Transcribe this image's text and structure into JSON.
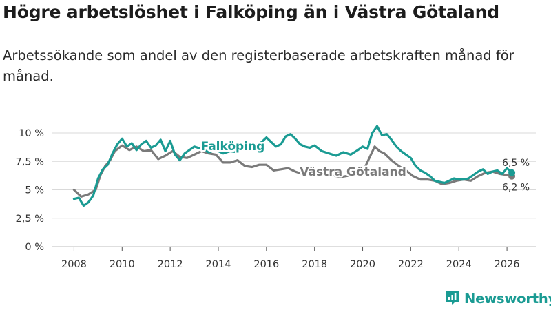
{
  "title": "Högre arbetslöshet i Falköping än i Västra Götaland",
  "subtitle": "Arbetssökande som andel av den registerbaserade arbetskraften månad för månad.",
  "brand": {
    "name": "Newsworthy",
    "color": "#1a9b93",
    "icon": "bar-chart-icon"
  },
  "chart_data": {
    "type": "line",
    "ylim": [
      0,
      10
    ],
    "y_ticks": [
      {
        "value": 0,
        "label": "0 %"
      },
      {
        "value": 2.5,
        "label": "2,5 %"
      },
      {
        "value": 5,
        "label": "5 %"
      },
      {
        "value": 7.5,
        "label": "7,5 %"
      },
      {
        "value": 10,
        "label": "10 %"
      }
    ],
    "xlim": [
      2007.1,
      2027.2
    ],
    "x_ticks": [
      {
        "value": 2008,
        "label": "2008"
      },
      {
        "value": 2010,
        "label": "2010"
      },
      {
        "value": 2012,
        "label": "2012"
      },
      {
        "value": 2014,
        "label": "2014"
      },
      {
        "value": 2016,
        "label": "2016"
      },
      {
        "value": 2018,
        "label": "2018"
      },
      {
        "value": 2020,
        "label": "2020"
      },
      {
        "value": 2022,
        "label": "2022"
      },
      {
        "value": 2024,
        "label": "2024"
      },
      {
        "value": 2026,
        "label": "2026"
      }
    ],
    "series": [
      {
        "name": "Västra Götaland",
        "color": "#7a7a7a",
        "end_label": "6,2 %",
        "x": [
          2008.0,
          2008.3,
          2008.6,
          2008.9,
          2009.1,
          2009.3,
          2009.5,
          2009.7,
          2010.0,
          2010.3,
          2010.6,
          2010.9,
          2011.2,
          2011.5,
          2011.8,
          2012.1,
          2012.4,
          2012.7,
          2013.0,
          2013.3,
          2013.6,
          2013.9,
          2014.2,
          2014.5,
          2014.8,
          2015.1,
          2015.4,
          2015.7,
          2016.0,
          2016.3,
          2016.6,
          2016.9,
          2017.2,
          2017.5,
          2017.8,
          2018.1,
          2018.4,
          2018.7,
          2019.0,
          2019.3,
          2019.6,
          2019.9,
          2020.1,
          2020.3,
          2020.5,
          2020.7,
          2020.9,
          2021.2,
          2021.5,
          2021.8,
          2022.1,
          2022.4,
          2022.7,
          2023.0,
          2023.3,
          2023.6,
          2023.9,
          2024.2,
          2024.5,
          2024.8,
          2025.1,
          2025.4,
          2025.7,
          2026.0,
          2026.2
        ],
        "values": [
          5.0,
          4.4,
          4.6,
          5.0,
          6.3,
          7.1,
          7.6,
          8.4,
          8.9,
          8.5,
          8.8,
          8.4,
          8.5,
          7.7,
          8.0,
          8.4,
          7.9,
          7.8,
          8.1,
          8.4,
          8.2,
          8.1,
          7.4,
          7.4,
          7.6,
          7.1,
          7.0,
          7.2,
          7.2,
          6.7,
          6.8,
          6.9,
          6.6,
          6.4,
          6.6,
          6.5,
          6.3,
          6.4,
          6.1,
          6.2,
          6.3,
          6.4,
          7.0,
          7.9,
          8.8,
          8.4,
          8.2,
          7.6,
          7.1,
          6.7,
          6.2,
          5.9,
          5.9,
          5.8,
          5.5,
          5.6,
          5.8,
          5.9,
          5.8,
          6.2,
          6.5,
          6.6,
          6.4,
          6.3,
          6.2
        ]
      },
      {
        "name": "Falköping",
        "color": "#1a9b93",
        "end_label": "6,5 %",
        "x": [
          2008.0,
          2008.2,
          2008.4,
          2008.6,
          2008.8,
          2009.0,
          2009.2,
          2009.4,
          2009.6,
          2009.8,
          2010.0,
          2010.2,
          2010.4,
          2010.6,
          2010.8,
          2011.0,
          2011.2,
          2011.4,
          2011.6,
          2011.8,
          2012.0,
          2012.2,
          2012.4,
          2012.6,
          2012.8,
          2013.0,
          2013.3,
          2013.6,
          2013.9,
          2014.2,
          2014.5,
          2014.8,
          2015.1,
          2015.4,
          2015.7,
          2016.0,
          2016.2,
          2016.4,
          2016.6,
          2016.8,
          2017.0,
          2017.2,
          2017.4,
          2017.6,
          2017.8,
          2018.0,
          2018.3,
          2018.6,
          2018.9,
          2019.2,
          2019.5,
          2019.8,
          2020.0,
          2020.2,
          2020.4,
          2020.6,
          2020.8,
          2021.0,
          2021.2,
          2021.4,
          2021.6,
          2021.8,
          2022.0,
          2022.2,
          2022.4,
          2022.6,
          2022.8,
          2023.0,
          2023.2,
          2023.4,
          2023.6,
          2023.8,
          2024.0,
          2024.2,
          2024.4,
          2024.6,
          2024.8,
          2025.0,
          2025.2,
          2025.4,
          2025.6,
          2025.8,
          2026.0,
          2026.2
        ],
        "values": [
          4.2,
          4.3,
          3.6,
          3.9,
          4.5,
          6.0,
          6.8,
          7.2,
          8.2,
          9.0,
          9.5,
          8.8,
          9.1,
          8.5,
          9.0,
          9.3,
          8.7,
          8.9,
          9.4,
          8.4,
          9.3,
          8.1,
          7.6,
          8.2,
          8.5,
          8.8,
          8.6,
          8.3,
          8.5,
          8.2,
          8.4,
          8.3,
          8.6,
          8.5,
          9.0,
          9.6,
          9.2,
          8.8,
          9.0,
          9.7,
          9.9,
          9.5,
          9.0,
          8.8,
          8.7,
          8.9,
          8.4,
          8.2,
          8.0,
          8.3,
          8.1,
          8.5,
          8.8,
          8.6,
          10.0,
          10.6,
          9.8,
          9.9,
          9.4,
          8.8,
          8.4,
          8.1,
          7.8,
          7.1,
          6.7,
          6.5,
          6.2,
          5.8,
          5.7,
          5.6,
          5.8,
          6.0,
          5.9,
          5.9,
          6.0,
          6.3,
          6.6,
          6.8,
          6.4,
          6.6,
          6.7,
          6.4,
          6.9,
          6.5
        ]
      }
    ],
    "labels": [
      {
        "series": "Falköping",
        "text": "Falköping",
        "x": 2014.6,
        "y": 8.84
      },
      {
        "series": "Västra Götaland",
        "text": "Västra Götaland",
        "x": 2019.6,
        "y": 6.6
      }
    ]
  }
}
